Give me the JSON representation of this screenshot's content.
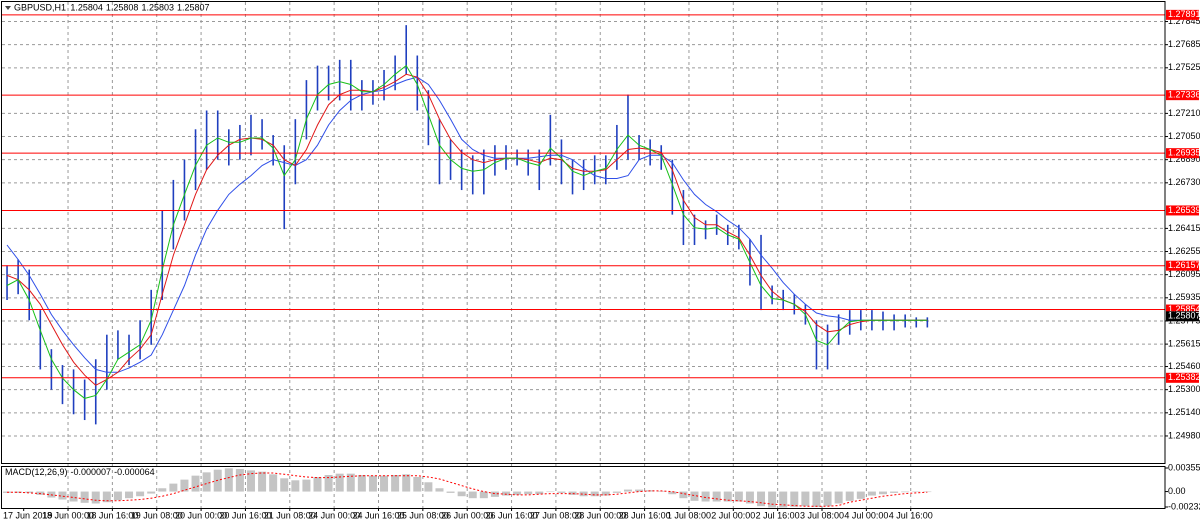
{
  "chart_data": [
    {
      "type": "hilo",
      "title": "GBPUSD,H1",
      "quote": [
        1.25804,
        1.25808,
        1.25803,
        1.25807
      ],
      "ylim": [
        1.248,
        1.2798
      ],
      "yticks": [
        1.27845,
        1.27685,
        1.27525,
        {
          "value": 1.2721,
          "label": "1.27210"
        },
        {
          "value": 1.2705,
          "label": "1.27050"
        },
        {
          "value": 1.2689,
          "label": "1.26890"
        },
        {
          "value": 1.2673,
          "label": "1.26730"
        },
        1.26415,
        1.26255,
        1.26095,
        1.25935,
        1.25775,
        1.25615,
        {
          "value": 1.2546,
          "label": "1.25460"
        },
        {
          "value": 1.253,
          "label": "1.25300"
        },
        {
          "value": 1.2514,
          "label": "1.25140"
        },
        {
          "value": 1.2498,
          "label": "1.24980"
        }
      ],
      "grid": true,
      "time_labels": [
        "17 Jun 2019",
        "18 Jun 00:00",
        "18 Jun 16:00",
        "19 Jun 08:00",
        "20 Jun 00:00",
        "20 Jun 16:00",
        "21 Jun 08:00",
        "24 Jun 00:00",
        "24 Jun 16:00",
        "25 Jun 08:00",
        "26 Jun 00:00",
        "26 Jun 16:00",
        "27 Jun 08:00",
        "28 Jun 00:00",
        "28 Jun 16:00",
        "1 Jul 08:00",
        "2 Jul 00:00",
        "2 Jul 16:00",
        "3 Jul 08:00",
        "4 Jul 00:00",
        "4 Jul 16:00"
      ],
      "color": "#1f3fbf",
      "high": [
        1.2616,
        1.262,
        1.2613,
        1.2585,
        1.2558,
        1.2547,
        1.2544,
        1.2537,
        1.2551,
        1.2568,
        1.2571,
        1.2568,
        1.2578,
        1.2599,
        1.2654,
        1.2675,
        1.2689,
        1.271,
        1.2723,
        1.2723,
        1.271,
        1.2713,
        1.272,
        1.2717,
        1.2706,
        1.2699,
        1.2717,
        1.2744,
        1.2754,
        1.2754,
        1.2758,
        1.2758,
        1.2744,
        1.2744,
        1.2751,
        1.2761,
        1.2782,
        1.2761,
        1.2737,
        1.2717,
        1.2703,
        1.2696,
        1.2692,
        1.2696,
        1.2699,
        1.2699,
        1.2696,
        1.2696,
        1.2696,
        1.272,
        1.2703,
        1.2689,
        1.2689,
        1.2692,
        1.2692,
        1.2713,
        1.2734,
        1.2706,
        1.2703,
        1.2699,
        1.2689,
        1.2668,
        1.2651,
        1.2647,
        1.2651,
        1.2644,
        1.2644,
        1.2634,
        1.2637,
        1.2602,
        1.2599,
        1.2596,
        1.2589,
        1.2578,
        1.2575,
        1.2582,
        1.2585,
        1.2585,
        1.2585,
        1.2584,
        1.2582,
        1.2582,
        1.258,
        1.258
      ],
      "low": [
        1.2592,
        1.2596,
        1.2578,
        1.2544,
        1.253,
        1.252,
        1.2513,
        1.2509,
        1.2506,
        1.253,
        1.2551,
        1.2547,
        1.2551,
        1.2561,
        1.2592,
        1.2627,
        1.2647,
        1.2668,
        1.2682,
        1.2689,
        1.2685,
        1.2689,
        1.2692,
        1.2696,
        1.2685,
        1.2641,
        1.2672,
        1.2703,
        1.2723,
        1.273,
        1.273,
        1.2723,
        1.2723,
        1.2727,
        1.273,
        1.2737,
        1.2748,
        1.2723,
        1.2699,
        1.2672,
        1.2675,
        1.2668,
        1.2665,
        1.2665,
        1.2678,
        1.2682,
        1.2685,
        1.2678,
        1.2668,
        1.2685,
        1.2672,
        1.2665,
        1.2668,
        1.2672,
        1.2672,
        1.2682,
        1.2689,
        1.2689,
        1.2685,
        1.2682,
        1.2651,
        1.263,
        1.263,
        1.2634,
        1.2637,
        1.263,
        1.2627,
        1.2602,
        1.2585,
        1.2589,
        1.2585,
        1.2582,
        1.2575,
        1.2544,
        1.2544,
        1.2561,
        1.2568,
        1.2571,
        1.2571,
        1.2571,
        1.2571,
        1.2573,
        1.2573,
        1.2573
      ],
      "series": [
        {
          "color": "#2f4fe8",
          "values": [
            1.263,
            1.262,
            1.2609,
            1.2596,
            1.2582,
            1.2571,
            1.2561,
            1.2552,
            1.2544,
            1.2542,
            1.2542,
            1.2545,
            1.2549,
            1.2554,
            1.2568,
            1.2585,
            1.2602,
            1.2623,
            1.2641,
            1.2654,
            1.2665,
            1.2672,
            1.2678,
            1.2685,
            1.2689,
            1.2687,
            1.2685,
            1.2689,
            1.2699,
            1.2713,
            1.2723,
            1.273,
            1.2734,
            1.2736,
            1.2737,
            1.2741,
            1.2744,
            1.2746,
            1.2741,
            1.273,
            1.2717,
            1.2703,
            1.2696,
            1.2692,
            1.269,
            1.269,
            1.269,
            1.269,
            1.2691,
            1.2692,
            1.2692,
            1.2689,
            1.2683,
            1.2678,
            1.2676,
            1.2676,
            1.2678,
            1.2689,
            1.2692,
            1.2692,
            1.2687,
            1.2675,
            1.2665,
            1.2658,
            1.2653,
            1.2647,
            1.2642,
            1.2634,
            1.2623,
            1.2614,
            1.2604,
            1.2596,
            1.2589,
            1.2583,
            1.2581,
            1.258,
            1.2578,
            1.2578,
            1.2578,
            1.2578,
            1.2578,
            1.2578,
            1.2578,
            1.2578
          ]
        },
        {
          "color": "#e01818",
          "values": [
            1.2609,
            1.2606,
            1.2599,
            1.2589,
            1.2575,
            1.2561,
            1.2549,
            1.254,
            1.2533,
            1.2537,
            1.2542,
            1.2551,
            1.2558,
            1.2568,
            1.2596,
            1.2623,
            1.2644,
            1.2665,
            1.2682,
            1.2692,
            1.2699,
            1.2703,
            1.2704,
            1.2703,
            1.2699,
            1.2689,
            1.2685,
            1.2696,
            1.2713,
            1.2727,
            1.2734,
            1.2737,
            1.2737,
            1.2736,
            1.2739,
            1.2743,
            1.2748,
            1.2746,
            1.2734,
            1.2717,
            1.2703,
            1.2694,
            1.2689,
            1.2687,
            1.2689,
            1.269,
            1.269,
            1.2689,
            1.2687,
            1.269,
            1.2689,
            1.2683,
            1.2681,
            1.2681,
            1.2682,
            1.2689,
            1.2696,
            1.2697,
            1.2696,
            1.2694,
            1.2682,
            1.2661,
            1.2649,
            1.2644,
            1.2644,
            1.2639,
            1.2635,
            1.2623,
            1.2609,
            1.2598,
            1.2592,
            1.2589,
            1.2584,
            1.2575,
            1.257,
            1.2571,
            1.2575,
            1.2577,
            1.2578,
            1.2578,
            1.2578,
            1.2578,
            1.2578,
            1.2578
          ]
        },
        {
          "color": "#18c018",
          "values": [
            1.2602,
            1.2606,
            1.2592,
            1.2571,
            1.2551,
            1.2538,
            1.253,
            1.2524,
            1.2526,
            1.2537,
            1.2551,
            1.2556,
            1.2561,
            1.2578,
            1.2613,
            1.2644,
            1.2665,
            1.2685,
            1.2699,
            1.2704,
            1.2701,
            1.2701,
            1.2704,
            1.2704,
            1.2697,
            1.2678,
            1.2689,
            1.2717,
            1.2734,
            1.2741,
            1.2743,
            1.2741,
            1.2736,
            1.2736,
            1.2741,
            1.2748,
            1.2754,
            1.2741,
            1.272,
            1.2699,
            1.2689,
            1.2683,
            1.2681,
            1.2682,
            1.2687,
            1.269,
            1.269,
            1.2687,
            1.2685,
            1.2697,
            1.269,
            1.2681,
            1.2678,
            1.2681,
            1.2683,
            1.2696,
            1.2706,
            1.2699,
            1.2696,
            1.2692,
            1.2672,
            1.2651,
            1.2642,
            1.2641,
            1.2642,
            1.2637,
            1.2634,
            1.2618,
            1.2602,
            1.2593,
            1.2592,
            1.2589,
            1.2582,
            1.2564,
            1.2561,
            1.257,
            1.2577,
            1.2578,
            1.2578,
            1.2578,
            1.2578,
            1.2578,
            1.2578,
            1.2578
          ]
        }
      ],
      "levels": {
        "color": "#ff0000",
        "values": [
          1.27891,
          1.27336,
          1.26935,
          1.26539,
          1.26157,
          1.25854,
          1.25382
        ]
      },
      "last": 1.25807
    },
    {
      "type": "macd",
      "title": "MACD(12,26,9)",
      "readout": [
        -7e-06,
        -6.4e-05
      ],
      "ylim": [
        -0.002328,
        0.003555
      ],
      "yticks": [
        0.003555,
        {
          "value": 0,
          "label": "0.00"
        },
        -0.002328
      ],
      "histogram": {
        "color": "#c4c4c4",
        "values": [
          -0.0002,
          -0.0002,
          -0.0002,
          -0.0005,
          -0.0009,
          -0.0012,
          -0.0015,
          -0.0017,
          -0.0018,
          -0.0016,
          -0.0013,
          -0.001,
          -0.0007,
          -0.0003,
          0.0005,
          0.0012,
          0.0018,
          0.0024,
          0.0029,
          0.0033,
          0.0035,
          0.0034,
          0.0032,
          0.003,
          0.0026,
          0.002,
          0.0017,
          0.0018,
          0.0022,
          0.0025,
          0.0027,
          0.0027,
          0.0025,
          0.0024,
          0.0024,
          0.0025,
          0.0026,
          0.0022,
          0.0014,
          0.0005,
          -0.0002,
          -0.0007,
          -0.001,
          -0.001,
          -0.0008,
          -0.0006,
          -0.0005,
          -0.0004,
          -0.0004,
          0.0,
          -0.0002,
          -0.0005,
          -0.0007,
          -0.0007,
          -0.0006,
          -0.0002,
          0.0003,
          0.0003,
          0.0002,
          0.0001,
          -0.0004,
          -0.001,
          -0.0014,
          -0.0015,
          -0.0015,
          -0.0015,
          -0.0015,
          -0.0018,
          -0.0022,
          -0.0024,
          -0.0024,
          -0.0023,
          -0.0022,
          -0.0023,
          -0.0022,
          -0.0018,
          -0.0014,
          -0.0011,
          -0.0006,
          -0.0004,
          -0.0002,
          -0.0001,
          0.0,
          0.0
        ]
      },
      "signal": {
        "color": "#ff0000",
        "values": [
          -0.0001,
          -0.0001,
          -0.0002,
          -0.0003,
          -0.0005,
          -0.0007,
          -0.0009,
          -0.0011,
          -0.0013,
          -0.0014,
          -0.0014,
          -0.0013,
          -0.0012,
          -0.001,
          -0.0007,
          -0.0003,
          0.0002,
          0.0007,
          0.0012,
          0.0017,
          0.0021,
          0.0025,
          0.0027,
          0.0028,
          0.0028,
          0.0026,
          0.0024,
          0.0022,
          0.0021,
          0.0021,
          0.0022,
          0.0023,
          0.0024,
          0.0024,
          0.0024,
          0.0024,
          0.0024,
          0.0024,
          0.0022,
          0.0019,
          0.0014,
          0.0009,
          0.0004,
          0.0,
          -0.0003,
          -0.0004,
          -0.0005,
          -0.0005,
          -0.0004,
          -0.0003,
          -0.0003,
          -0.0003,
          -0.0004,
          -0.0005,
          -0.0005,
          -0.0004,
          -0.0002,
          0.0,
          0.0001,
          0.0001,
          0.0,
          -0.0003,
          -0.0006,
          -0.0009,
          -0.0011,
          -0.0013,
          -0.0014,
          -0.0015,
          -0.0017,
          -0.0019,
          -0.002,
          -0.0021,
          -0.0022,
          -0.0022,
          -0.0022,
          -0.0021,
          -0.0016,
          -0.0013,
          -0.001,
          -0.0007,
          -0.0005,
          -0.0003,
          -0.0002,
          -0.0001
        ]
      }
    }
  ]
}
